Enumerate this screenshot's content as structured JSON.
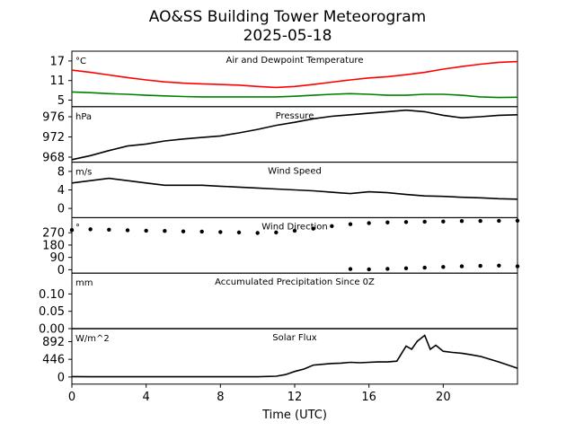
{
  "figure": {
    "title": "AO&SS Building Tower Meteorogram",
    "subtitle": "2025-05-18",
    "xlabel": "Time (UTC)"
  },
  "colors": {
    "temperature": "#ff0000",
    "dewpoint": "#008000",
    "line": "#000000"
  },
  "chart_data": [
    {
      "type": "line",
      "title": "Air and Dewpoint Temperature",
      "unit": "°C",
      "x": [
        0,
        1,
        2,
        3,
        4,
        5,
        6,
        7,
        8,
        9,
        10,
        11,
        12,
        13,
        14,
        15,
        16,
        17,
        18,
        19,
        20,
        21,
        22,
        23,
        24
      ],
      "series": [
        {
          "key": "temperature",
          "values": [
            14.2,
            13.5,
            12.7,
            11.9,
            11.2,
            10.6,
            10.2,
            10.0,
            9.8,
            9.6,
            9.2,
            8.9,
            9.2,
            9.8,
            10.5,
            11.2,
            11.8,
            12.2,
            12.8,
            13.5,
            14.5,
            15.3,
            16.0,
            16.6,
            16.8
          ]
        },
        {
          "key": "dewpoint",
          "values": [
            7.5,
            7.3,
            7.0,
            6.8,
            6.5,
            6.3,
            6.1,
            6.0,
            6.0,
            6.0,
            6.0,
            6.0,
            6.2,
            6.5,
            6.8,
            7.0,
            6.8,
            6.5,
            6.5,
            6.8,
            6.8,
            6.5,
            6.0,
            5.8,
            5.9
          ]
        }
      ],
      "yticks": [
        5,
        11,
        17
      ],
      "ylim": [
        3,
        20
      ],
      "xlim": [
        0,
        24
      ]
    },
    {
      "type": "line",
      "title": "Pressure",
      "unit": "hPa",
      "x": [
        0,
        1,
        2,
        3,
        4,
        5,
        6,
        7,
        8,
        9,
        10,
        11,
        12,
        13,
        14,
        15,
        16,
        17,
        18,
        19,
        20,
        21,
        22,
        23,
        24
      ],
      "series": [
        {
          "key": "pressure",
          "values": [
            967.5,
            968.3,
            969.3,
            970.2,
            970.6,
            971.2,
            971.6,
            971.9,
            972.2,
            972.8,
            973.5,
            974.3,
            974.9,
            975.6,
            976.1,
            976.4,
            976.7,
            977.0,
            977.3,
            977.0,
            976.3,
            975.8,
            976.0,
            976.3,
            976.4
          ]
        }
      ],
      "yticks": [
        968,
        972,
        976
      ],
      "ylim": [
        967,
        978
      ],
      "xlim": [
        0,
        24
      ]
    },
    {
      "type": "line",
      "title": "Wind Speed",
      "unit": "m/s",
      "x": [
        0,
        1,
        2,
        3,
        4,
        5,
        6,
        7,
        8,
        9,
        10,
        11,
        12,
        13,
        14,
        15,
        16,
        17,
        18,
        19,
        20,
        21,
        22,
        23,
        24
      ],
      "series": [
        {
          "key": "wind_speed",
          "values": [
            5.5,
            6.0,
            6.5,
            6.0,
            5.5,
            5.0,
            5.0,
            5.0,
            4.8,
            4.6,
            4.4,
            4.2,
            4.0,
            3.8,
            3.5,
            3.2,
            3.6,
            3.4,
            3.0,
            2.7,
            2.6,
            2.4,
            2.3,
            2.1,
            2.0
          ]
        }
      ],
      "yticks": [
        0,
        4,
        8
      ],
      "ylim": [
        -2,
        10
      ],
      "xlim": [
        0,
        24
      ]
    },
    {
      "type": "scatter",
      "title": "Wind Direction",
      "unit": "°",
      "x": [
        0,
        1,
        2,
        3,
        4,
        5,
        6,
        7,
        8,
        9,
        10,
        11,
        12,
        13,
        14,
        15,
        16,
        17,
        18,
        19,
        20,
        21,
        22,
        23,
        24
      ],
      "series": [
        {
          "key": "wind_direction_upper",
          "values": [
            290,
            295,
            292,
            288,
            285,
            283,
            280,
            278,
            275,
            272,
            268,
            272,
            285,
            300,
            318,
            332,
            340,
            345,
            348,
            350,
            352,
            355,
            356,
            357,
            358
          ]
        },
        {
          "key": "wind_direction_lower",
          "values": [
            null,
            null,
            null,
            null,
            null,
            null,
            null,
            null,
            null,
            null,
            null,
            null,
            null,
            null,
            null,
            5,
            3,
            6,
            10,
            15,
            20,
            25,
            28,
            30,
            25
          ]
        }
      ],
      "yticks": [
        0,
        90,
        180,
        270
      ],
      "ylim": [
        -25,
        380
      ],
      "xlim": [
        0,
        24
      ]
    },
    {
      "type": "line",
      "title": "Accumulated Precipitation Since 0Z",
      "unit": "mm",
      "x": [
        0,
        24
      ],
      "series": [
        {
          "key": "precipitation",
          "values": [
            0,
            0
          ]
        }
      ],
      "yticks": [
        0.0,
        0.05,
        0.1
      ],
      "ytick_labels": [
        "0.00",
        "0.05",
        "0.10"
      ],
      "ylim": [
        0,
        0.16
      ],
      "xlim": [
        0,
        24
      ]
    },
    {
      "type": "line",
      "title": "Solar Flux",
      "unit": "W/m^2",
      "x": [
        0,
        1,
        2,
        3,
        4,
        5,
        6,
        7,
        8,
        9,
        10,
        11,
        11.5,
        12,
        12.5,
        13,
        13.5,
        14,
        14.5,
        15,
        15.5,
        16,
        16.5,
        17,
        17.5,
        18,
        18.3,
        18.6,
        19,
        19.3,
        19.6,
        20,
        20.5,
        21,
        21.5,
        22,
        22.5,
        23,
        23.5,
        24
      ],
      "series": [
        {
          "key": "solar_flux",
          "values": [
            10,
            5,
            5,
            5,
            5,
            5,
            5,
            5,
            5,
            5,
            5,
            20,
            60,
            140,
            200,
            300,
            320,
            340,
            350,
            370,
            360,
            370,
            380,
            380,
            400,
            780,
            700,
            900,
            1050,
            700,
            800,
            650,
            620,
            600,
            560,
            520,
            450,
            380,
            300,
            220
          ]
        }
      ],
      "yticks": [
        0,
        446,
        892
      ],
      "ylim": [
        -180,
        1220
      ],
      "xlim": [
        0,
        24
      ]
    }
  ],
  "xticks": [
    0,
    4,
    8,
    12,
    16,
    20
  ]
}
